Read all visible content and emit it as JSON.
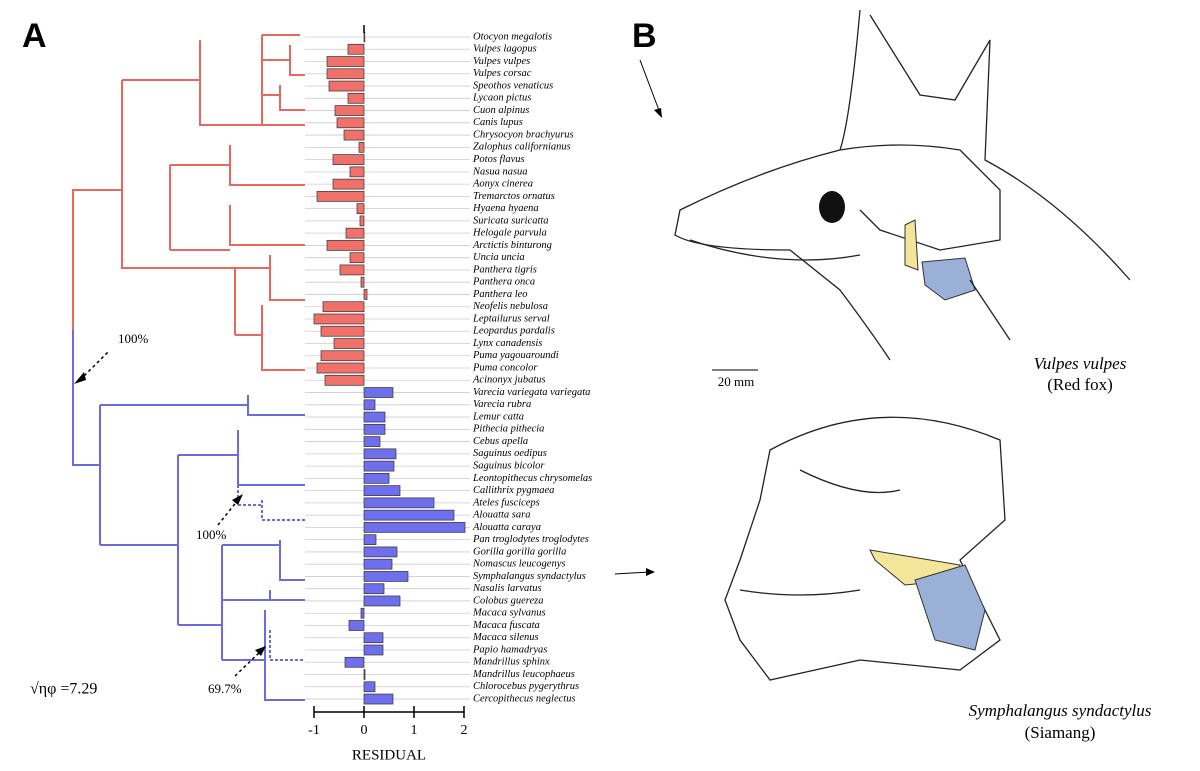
{
  "chart_data": {
    "type": "hbar",
    "panel_labels": [
      "A",
      "B"
    ],
    "x_label": "RESIDUAL",
    "annotations": [
      "100%",
      "100%",
      "69.7%",
      "√ηφ =7.29"
    ],
    "categories": [
      "Otocyon megalotis",
      "Vulpes lagopus",
      "Vulpes vulpes",
      "Vulpes corsac",
      "Speothos venaticus",
      "Lycaon pictus",
      "Cuon alpinus",
      "Canis lupus",
      "Chrysocyon brachyurus",
      "Zalophus californianus",
      "Potos flavus",
      "Nasua nasua",
      "Aonyx cinerea",
      "Tremarctos ornatus",
      "Hyaena hyaena",
      "Suricata suricatta",
      "Helogale parvula",
      "Arctictis binturong",
      "Uncia uncia",
      "Panthera tigris",
      "Panthera onca",
      "Panthera leo",
      "Neofelis nebulosa",
      "Leptailurus serval",
      "Leopardus pardalis",
      "Lynx canadensis",
      "Puma yagouaroundi",
      "Puma concolor",
      "Acinonyx jubatus",
      "Varecia variegata variegata",
      "Varecia rubra",
      "Lemur catta",
      "Pithecia pithecia",
      "Cebus apella",
      "Saguinus oedipus",
      "Saguinus bicolor",
      "Leontopithecus chrysomelas",
      "Callithrix pygmaea",
      "Ateles fusciceps",
      "Alouatta sara",
      "Alouatta caraya",
      "Pan troglodytes troglodytes",
      "Gorilla gorilla gorilla",
      "Nomascus leucogenys",
      "Symphalangus syndactylus",
      "Nasalis larvatus",
      "Colobus guereza",
      "Macaca sylvanus",
      "Macaca fuscata",
      "Macaca silenus",
      "Papio hamadryas",
      "Mandrillus sphinx",
      "Mandrillus leucophaeus",
      "Chlorocebus pygerythrus",
      "Cercopithecus neglectus"
    ],
    "values": [
      0,
      -0.32,
      -0.74,
      -0.74,
      -0.7,
      -0.32,
      -0.58,
      -0.54,
      -0.4,
      -0.1,
      -0.62,
      -0.28,
      -0.62,
      -0.94,
      -0.14,
      -0.08,
      -0.36,
      -0.74,
      -0.28,
      -0.48,
      -0.06,
      0.06,
      -0.82,
      -1.0,
      -0.86,
      -0.6,
      -0.86,
      -0.94,
      -0.78,
      0.58,
      0.22,
      0.42,
      0.42,
      0.32,
      0.64,
      0.6,
      0.5,
      0.72,
      1.4,
      1.8,
      2.02,
      0.24,
      0.66,
      0.56,
      0.88,
      0.4,
      0.72,
      -0.06,
      -0.3,
      0.38,
      0.38,
      -0.38,
      0.02,
      0.22,
      0.58
    ],
    "colors": [
      "#f0706a",
      "#f0706a",
      "#f0706a",
      "#f0706a",
      "#f0706a",
      "#f0706a",
      "#f0706a",
      "#f0706a",
      "#f0706a",
      "#f0706a",
      "#f0706a",
      "#f0706a",
      "#f0706a",
      "#f0706a",
      "#f0706a",
      "#f0706a",
      "#f0706a",
      "#f0706a",
      "#f0706a",
      "#f0706a",
      "#f0706a",
      "#f0706a",
      "#f0706a",
      "#f0706a",
      "#f0706a",
      "#f0706a",
      "#f0706a",
      "#f0706a",
      "#f0706a",
      "#6f6fec",
      "#6f6fec",
      "#6f6fec",
      "#6f6fec",
      "#6f6fec",
      "#6f6fec",
      "#6f6fec",
      "#6f6fec",
      "#6f6fec",
      "#6f6fec",
      "#6f6fec",
      "#6f6fec",
      "#6f6fec",
      "#6f6fec",
      "#6f6fec",
      "#6f6fec",
      "#6f6fec",
      "#6f6fec",
      "#6f6fec",
      "#6f6fec",
      "#6f6fec",
      "#6f6fec",
      "#6f6fec",
      "#6f6fec",
      "#6f6fec",
      "#6f6fec"
    ],
    "xlim": [
      -1,
      2
    ],
    "xticks": [
      -1,
      0,
      1,
      2
    ],
    "panel_b": {
      "species": [
        "Vulpes vulpes",
        "Symphalangus syndactylus"
      ],
      "common": [
        "(Red fox)",
        "(Siamang)"
      ],
      "scale": "20 mm"
    }
  }
}
